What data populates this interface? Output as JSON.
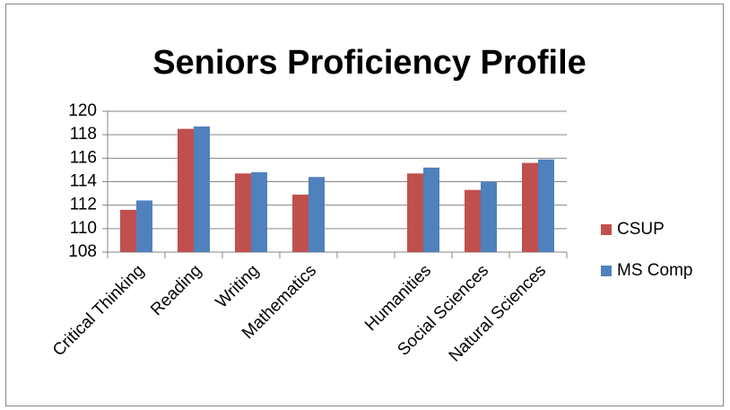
{
  "chart_data": {
    "type": "bar",
    "title": "Seniors Proficiency Profile",
    "categories": [
      "Critical Thinking",
      "Reading",
      "Writing",
      "Mathematics",
      null,
      "Humanities",
      "Social Sciences",
      "Natural Sciences"
    ],
    "series": [
      {
        "name": "CSUP",
        "color": "#c0504d",
        "values": [
          111.6,
          118.5,
          114.7,
          112.9,
          null,
          114.7,
          113.3,
          115.6
        ]
      },
      {
        "name": "MS Comp",
        "color": "#4f81bd",
        "values": [
          112.4,
          118.7,
          114.8,
          114.4,
          null,
          115.2,
          114.0,
          115.9
        ]
      }
    ],
    "ylim": [
      108,
      120
    ],
    "yticks": [
      108,
      110,
      112,
      114,
      116,
      118,
      120
    ],
    "grid": true,
    "legend": "right"
  }
}
